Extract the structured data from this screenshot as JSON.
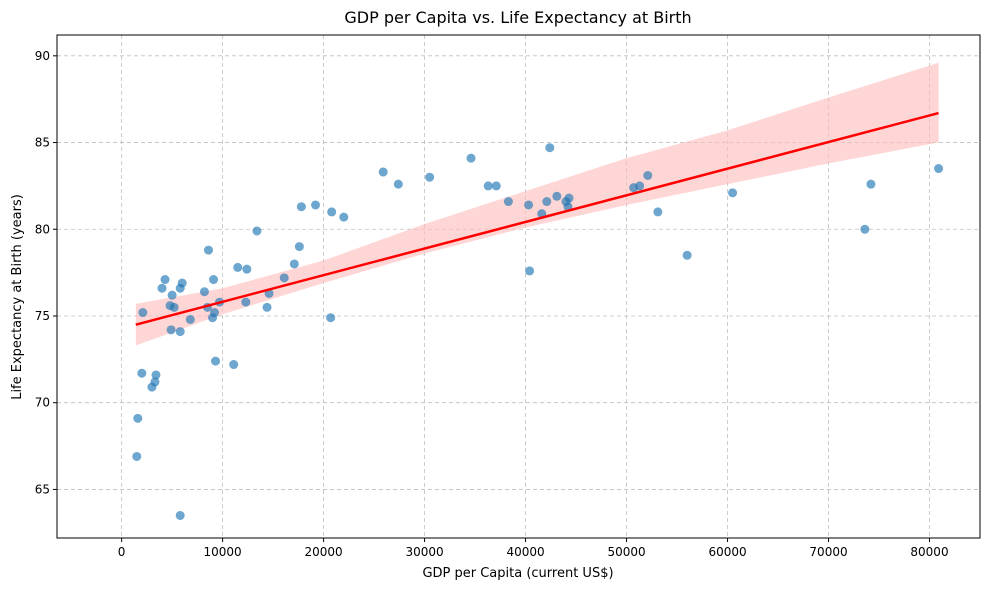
{
  "chart_data": {
    "type": "scatter",
    "title": "GDP per Capita vs. Life Expectancy at Birth",
    "xlabel": "GDP per Capita (current US$)",
    "ylabel": "Life Expectancy at Birth (years)",
    "xlim": [
      -6400,
      85000
    ],
    "ylim": [
      62.2,
      91.2
    ],
    "xticks": [
      0,
      10000,
      20000,
      30000,
      40000,
      50000,
      60000,
      70000,
      80000
    ],
    "yticks": [
      65,
      70,
      75,
      80,
      85,
      90
    ],
    "grid": true,
    "colors": {
      "points": "#1f77b4",
      "regression_line": "#ff0000",
      "confidence_band": "#ffbbbb",
      "grid": "#b0b0b0"
    },
    "points": [
      {
        "x": 1500,
        "y": 66.9
      },
      {
        "x": 1600,
        "y": 69.1
      },
      {
        "x": 2000,
        "y": 71.7
      },
      {
        "x": 2100,
        "y": 75.2
      },
      {
        "x": 3000,
        "y": 70.9
      },
      {
        "x": 3300,
        "y": 71.2
      },
      {
        "x": 3400,
        "y": 71.6
      },
      {
        "x": 4000,
        "y": 76.6
      },
      {
        "x": 4300,
        "y": 77.1
      },
      {
        "x": 4800,
        "y": 75.6
      },
      {
        "x": 5000,
        "y": 76.2
      },
      {
        "x": 5200,
        "y": 75.5
      },
      {
        "x": 4900,
        "y": 74.2
      },
      {
        "x": 5800,
        "y": 74.1
      },
      {
        "x": 5800,
        "y": 76.6
      },
      {
        "x": 6000,
        "y": 76.9
      },
      {
        "x": 5800,
        "y": 63.5
      },
      {
        "x": 6800,
        "y": 74.8
      },
      {
        "x": 8200,
        "y": 76.4
      },
      {
        "x": 8500,
        "y": 75.5
      },
      {
        "x": 8600,
        "y": 78.8
      },
      {
        "x": 9000,
        "y": 74.9
      },
      {
        "x": 9100,
        "y": 77.1
      },
      {
        "x": 9200,
        "y": 75.2
      },
      {
        "x": 9300,
        "y": 72.4
      },
      {
        "x": 9700,
        "y": 75.8
      },
      {
        "x": 11100,
        "y": 72.2
      },
      {
        "x": 11500,
        "y": 77.8
      },
      {
        "x": 12300,
        "y": 75.8
      },
      {
        "x": 12400,
        "y": 77.7
      },
      {
        "x": 13400,
        "y": 79.9
      },
      {
        "x": 14400,
        "y": 75.5
      },
      {
        "x": 14600,
        "y": 76.3
      },
      {
        "x": 16100,
        "y": 77.2
      },
      {
        "x": 17100,
        "y": 78.0
      },
      {
        "x": 17600,
        "y": 79.0
      },
      {
        "x": 17800,
        "y": 81.3
      },
      {
        "x": 19200,
        "y": 81.4
      },
      {
        "x": 20700,
        "y": 74.9
      },
      {
        "x": 20800,
        "y": 81.0
      },
      {
        "x": 22000,
        "y": 80.7
      },
      {
        "x": 25900,
        "y": 83.3
      },
      {
        "x": 27400,
        "y": 82.6
      },
      {
        "x": 30500,
        "y": 83.0
      },
      {
        "x": 34600,
        "y": 84.1
      },
      {
        "x": 36300,
        "y": 82.5
      },
      {
        "x": 37100,
        "y": 82.5
      },
      {
        "x": 38300,
        "y": 81.6
      },
      {
        "x": 40300,
        "y": 81.4
      },
      {
        "x": 40400,
        "y": 77.6
      },
      {
        "x": 41600,
        "y": 80.9
      },
      {
        "x": 42100,
        "y": 81.6
      },
      {
        "x": 42400,
        "y": 84.7
      },
      {
        "x": 43100,
        "y": 81.9
      },
      {
        "x": 44000,
        "y": 81.6
      },
      {
        "x": 44200,
        "y": 81.3
      },
      {
        "x": 44300,
        "y": 81.8
      },
      {
        "x": 50700,
        "y": 82.4
      },
      {
        "x": 51300,
        "y": 82.5
      },
      {
        "x": 52100,
        "y": 83.1
      },
      {
        "x": 53100,
        "y": 81.0
      },
      {
        "x": 56000,
        "y": 78.5
      },
      {
        "x": 60500,
        "y": 82.1
      },
      {
        "x": 73600,
        "y": 80.0
      },
      {
        "x": 74200,
        "y": 82.6
      },
      {
        "x": 80900,
        "y": 83.5
      }
    ],
    "regression_line": {
      "x": [
        1400,
        80900
      ],
      "y": [
        74.5,
        86.7
      ]
    },
    "confidence_band": {
      "x": [
        1400,
        10000,
        20000,
        30000,
        40000,
        50000,
        60000,
        70000,
        80900
      ],
      "lower": [
        73.3,
        75.1,
        76.9,
        78.6,
        80.1,
        81.4,
        82.6,
        83.8,
        85.0
      ],
      "upper": [
        75.7,
        76.6,
        78.2,
        80.3,
        82.2,
        84.1,
        85.7,
        87.6,
        89.6
      ]
    }
  }
}
